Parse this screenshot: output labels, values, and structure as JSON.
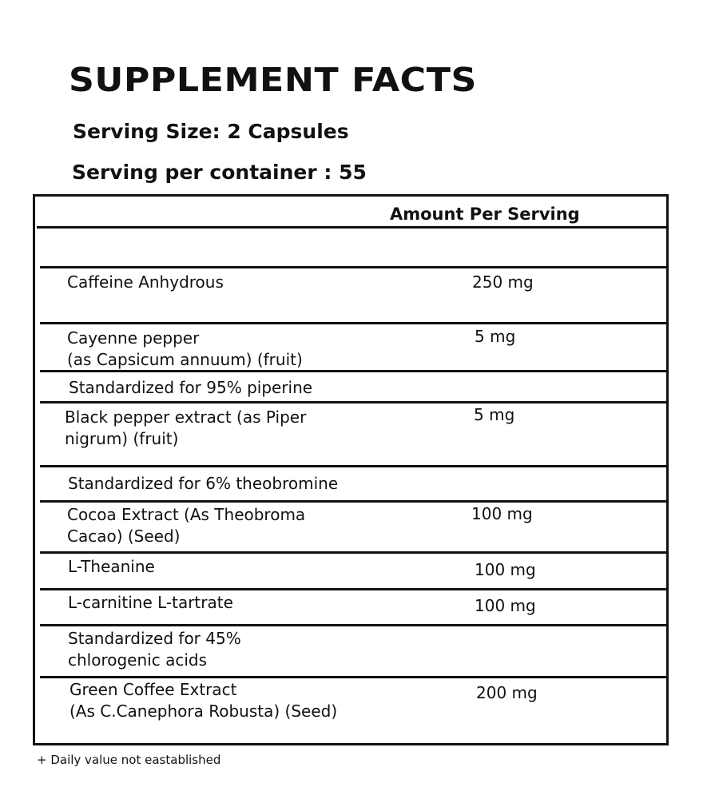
{
  "title": "SUPPLEMENT FACTS",
  "serving_size": "Serving Size: 2 Capsules",
  "servings_per_container": "Serving per container : 55",
  "table": {
    "header": "Amount Per Serving",
    "rows": [
      {
        "name": "Caffeine Anhydrous",
        "amount": "250 mg"
      },
      {
        "name": "Cayenne pepper\n(as Capsicum annuum) (fruit)",
        "amount": "5 mg"
      },
      {
        "name": "Standardized for 95% piperine",
        "amount": ""
      },
      {
        "name": "Black pepper extract (as Piper\nnigrum) (fruit)",
        "amount": "5 mg"
      },
      {
        "name": "Standardized for 6% theobromine",
        "amount": ""
      },
      {
        "name": "Cocoa Extract (As Theobroma\nCacao) (Seed)",
        "amount": "100 mg"
      },
      {
        "name": "L-Theanine",
        "amount": "100 mg"
      },
      {
        "name": "L-carnitine L-tartrate",
        "amount": "100 mg"
      },
      {
        "name": "Standardized for 45%\nchlorogenic acids",
        "amount": ""
      },
      {
        "name": "Green Coffee Extract\n(As C.Canephora Robusta) (Seed)",
        "amount": "200 mg"
      }
    ]
  },
  "footnote": "+ Daily value not eastablished"
}
